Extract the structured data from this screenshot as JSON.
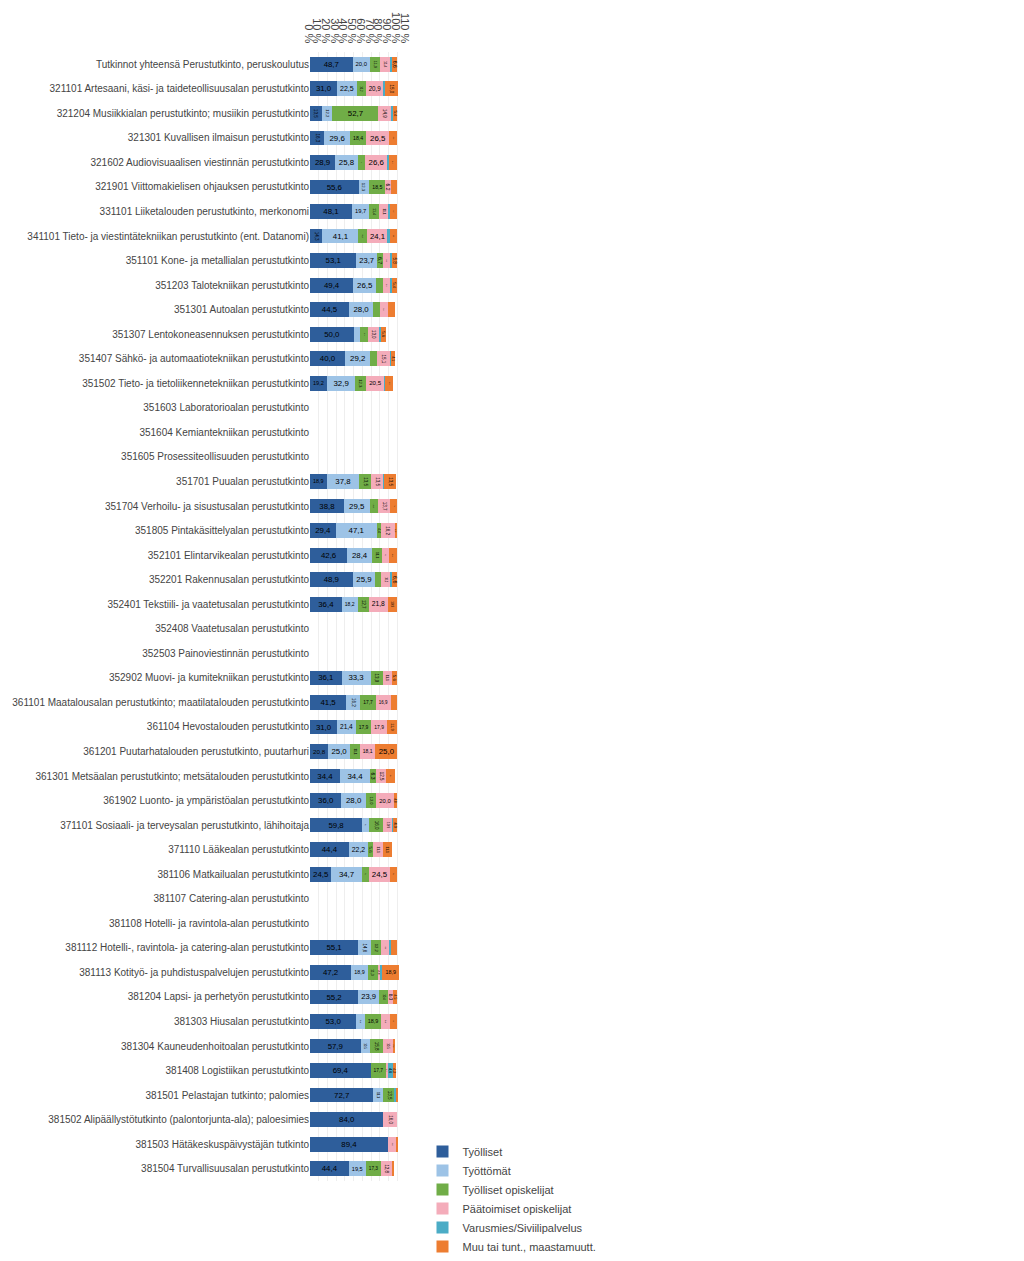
{
  "chart_data": {
    "type": "bar",
    "orientation": "horizontal",
    "stacked": true,
    "data_labels": true,
    "grid": true,
    "legend": "bottom",
    "categories": [
      "Tutkinnot yhteensä Perustutkinto, peruskoulutus",
      "321101 Artesaani, käsi- ja taideteollisuusalan perustutkinto",
      "321204 Musiikkialan perustutkinto; musiikin perustutkinto",
      "321301 Kuvallisen ilmaisun perustutkinto",
      "321602 Audiovisuaalisen viestinnän perustutkinto",
      "321901 Viittomakielisen ohjauksen perustutkinto",
      "331101 Liiketalouden perustutkinto, merkonomi",
      "341101 Tieto- ja viestintätekniikan perustutkinto (ent. Datanomi)",
      "351101 Kone- ja metallialan perustutkinto",
      "351203 Talotekniikan perustutkinto",
      "351301 Autoalan perustutkinto",
      "351307 Lentokoneasennuksen perustutkinto",
      "351407 Sähkö- ja automaatiotekniikan perustutkinto",
      "351502 Tieto- ja tietoliikennetekniikan perustutkinto",
      "351603 Laboratorioalan perustutkinto",
      "351604 Kemiantekniikan perustutkinto",
      "351605 Prosessiteollisuuden perustutkinto",
      "351701 Puualan perustutkinto",
      "351704 Verhoilu- ja sisustusalan perustutkinto",
      "351805 Pintakäsittelyalan perustutkinto",
      "352101 Elintarvikealan perustutkinto",
      "352201 Rakennusalan perustutkinto",
      "352401 Tekstiili- ja vaatetusalan perustutkinto",
      "352408 Vaatetusalan perustutkinto",
      "352503 Painoviestinnän perustutkinto",
      "352902 Muovi- ja kumitekniikan perustutkinto",
      "361101 Maatalousalan perustutkinto; maatilatalouden perustutkinto",
      "361104 Hevostalouden perustutkinto",
      "361201 Puutarhatalouden perustutkinto, puutarhuri",
      "361301 Metsäalan perustutkinto; metsätalouden perustutkinto",
      "361902 Luonto- ja ympäristöalan perustutkinto",
      "371101 Sosiaali- ja terveysalan perustutkinto, lähihoitaja",
      "371110 Lääkealan perustutkinto",
      "381106 Matkailualan perustutkinto",
      "381107 Catering-alan perustutkinto",
      "381108 Hotelli- ja ravintola-alan perustutkinto",
      "381112 Hotelli-, ravintola- ja catering-alan perustutkinto",
      "381113 Kotityö- ja puhdistuspalvelujen perustutkinto",
      "381204 Lapsi- ja perhetyön perustutkinto",
      "381303 Hiusalan perustutkinto",
      "381304 Kauneudenhoitoalan perustutkinto",
      "381408 Logistiikan perustutkinto",
      "381501 Pelastajan tutkinto; palomies",
      "381502 Alipäällystötutkinto (palontorjunta-ala); paloesimies",
      "381503 Hätäkeskuspäivystäjän tutkinto",
      "381504 Turvallisuusalan perustutkinto"
    ],
    "series": [
      {
        "name": "Työlliset",
        "color": "#2E5E9B",
        "values": [
          48.7,
          31.0,
          13.5,
          16.3,
          28.9,
          55.6,
          48.1,
          14.3,
          53.1,
          49.4,
          44.5,
          50.0,
          40.0,
          19.2,
          0.0,
          0.0,
          0.0,
          18.9,
          38.8,
          29.4,
          42.6,
          48.9,
          36.4,
          0.0,
          0.0,
          36.1,
          41.5,
          31.0,
          20.8,
          34.4,
          36.0,
          59.8,
          44.4,
          24.5,
          0.0,
          0.0,
          55.1,
          47.2,
          55.2,
          53.0,
          57.9,
          69.4,
          72.7,
          84.0,
          89.4,
          44.4
        ],
        "value_labels": [
          "48,7",
          "31,0",
          "13,5",
          "16,3",
          "28,9",
          "55,6",
          "48,1",
          "14,3",
          "53,1",
          "49,4",
          "44,5",
          "50,0",
          "40,0",
          "19,2",
          null,
          null,
          null,
          "18,9",
          "38,8",
          "29,4",
          "42,6",
          "48,9",
          "36,4",
          null,
          null,
          "36,1",
          "41,5",
          "31,0",
          "20,8",
          "34,4",
          "36,0",
          "59,8",
          "44,4",
          "24,5",
          null,
          null,
          "55,1",
          "47,2",
          "55,2",
          "53,0",
          "57,9",
          "69,4",
          "72,7",
          "84,0",
          "89,4",
          "44,4"
        ]
      },
      {
        "name": "Työttömät",
        "color": "#9DC3E6",
        "values": [
          20.0,
          22.5,
          12.2,
          29.6,
          25.8,
          12.3,
          19.7,
          41.1,
          23.7,
          26.5,
          28.0,
          7.4,
          29.2,
          32.9,
          0.0,
          0.0,
          0.0,
          37.8,
          29.5,
          47.1,
          28.4,
          25.9,
          18.2,
          0.0,
          0.0,
          33.3,
          16.2,
          21.4,
          25.0,
          34.4,
          28.0,
          8.1,
          22.2,
          34.7,
          0.0,
          0.0,
          14.6,
          18.9,
          23.9,
          9.8,
          10.5,
          0.0,
          11.1,
          0.0,
          0.0,
          19.5
        ],
        "value_labels": [
          "20,0",
          "22,5",
          "12,2",
          "29,6",
          "25,8",
          "12,3",
          "19,7",
          "41,1",
          "23,7",
          "26,5",
          "28,0",
          "7,4",
          "29,2",
          "32,9",
          null,
          null,
          null,
          "37,8",
          "29,5",
          "47,1",
          "28,4",
          "25,9",
          "18,2",
          null,
          null,
          "33,3",
          "16,2",
          "21,4",
          "25,0",
          "34,4",
          "28,0",
          "8,1",
          "22,2",
          "34,7",
          null,
          null,
          "14,6",
          "18,9",
          "23,9",
          "9,8",
          "10,5",
          null,
          "11,1",
          null,
          null,
          "19,5"
        ]
      },
      {
        "name": "Työlliset opiskelijat",
        "color": "#70AD47",
        "values": [
          11.9,
          10.2,
          52.7,
          18.4,
          7.8,
          18.5,
          11.4,
          9.8,
          6.7,
          7.4,
          7.4,
          9.3,
          7.4,
          12.3,
          0.0,
          0.0,
          0.0,
          13.5,
          10.1,
          4.4,
          11.1,
          6.9,
          12.7,
          0.0,
          0.0,
          13.9,
          17.7,
          17.9,
          11.1,
          6.3,
          12.0,
          16.0,
          5.6,
          8.2,
          0.0,
          0.0,
          12.2,
          11.3,
          10.4,
          18.9,
          15.8,
          17.7,
          13.5,
          0.0,
          0.0,
          17.3
        ],
        "value_labels": [
          "11,9",
          "10,2",
          "52,7",
          "18,4",
          "7,8",
          "18,5",
          "11,4",
          "9,8",
          "6,7",
          "7,4",
          "7,4",
          "9,3",
          "7,4",
          "12,3",
          null,
          null,
          null,
          "13,5",
          "10,1",
          "4,4",
          "11,1",
          "6,9",
          "12,7",
          null,
          null,
          "13,9",
          "17,7",
          "17,9",
          "11,1",
          "6,3",
          "12,0",
          "16,0",
          "5,6",
          "8,2",
          null,
          null,
          "12,2",
          "11,3",
          "10,4",
          "18,9",
          "15,8",
          "17,7",
          "13,5",
          null,
          null,
          "17,3"
        ]
      },
      {
        "name": "Päätoimiset opiskelijat",
        "color": "#F4ACBA",
        "values": [
          11.4,
          20.9,
          14.9,
          26.5,
          26.6,
          6.2,
          11.1,
          24.1,
          8.8,
          9.2,
          9.4,
          13.0,
          15.1,
          20.5,
          0.0,
          0.0,
          0.0,
          13.5,
          13.7,
          16.2,
          8.4,
          10.2,
          21.8,
          0.0,
          0.0,
          11.1,
          16.9,
          17.9,
          18.1,
          12.5,
          20.0,
          10.9,
          11.1,
          24.5,
          0.0,
          0.0,
          9.5,
          3.8,
          6.0,
          9.8,
          10.5,
          2.7,
          0.0,
          16.0,
          9.6,
          12.8
        ],
        "value_labels": [
          "11,4",
          "20,9",
          "14,9",
          "26,5",
          "26,6",
          "6,2",
          "11,1",
          "24,1",
          "8,8",
          "9,2",
          "9,4",
          "13,0",
          "15,1",
          "20,5",
          null,
          null,
          null,
          "13,5",
          "13,7",
          "16,2",
          "8,4",
          "10,2",
          "21,8",
          null,
          null,
          "11,1",
          "16,9",
          "17,9",
          "18,1",
          "12,5",
          "20,0",
          "10,9",
          "11,1",
          "24,5",
          null,
          null,
          "9,5",
          "3,8",
          "6,0",
          "9,8",
          "10,5",
          "2,7",
          null,
          "16,0",
          "9,6",
          "12,8"
        ]
      },
      {
        "name": "Varusmies/Siviilipalvelus",
        "color": "#4BACC6",
        "values": [
          1.4,
          1.0,
          1.4,
          0.0,
          1.4,
          0.0,
          1.3,
          1.8,
          1.7,
          1.4,
          0.0,
          1.3,
          1.1,
          1.2,
          0.0,
          0.0,
          0.0,
          1.3,
          0.0,
          0.0,
          0.0,
          1.5,
          0.0,
          0.0,
          0.0,
          0.0,
          0.0,
          0.0,
          0.0,
          0.0,
          0.0,
          0.3,
          0.0,
          0.0,
          0.0,
          0.0,
          1.2,
          1.8,
          0.0,
          0.0,
          0.0,
          4.8,
          2.0,
          0.0,
          0.0,
          0.8
        ],
        "value_labels": [
          null,
          null,
          null,
          null,
          null,
          null,
          null,
          null,
          null,
          null,
          null,
          null,
          null,
          null,
          null,
          null,
          null,
          null,
          null,
          null,
          null,
          null,
          null,
          null,
          null,
          null,
          null,
          null,
          null,
          null,
          null,
          null,
          null,
          null,
          null,
          null,
          null,
          null,
          null,
          null,
          null,
          "4,8",
          null,
          null,
          null,
          null
        ]
      },
      {
        "name": "Muu tai tunt., maastamuutt.",
        "color": "#ED7D31",
        "values": [
          6.6,
          15.0,
          5.4,
          9.2,
          9.4,
          7.4,
          8.4,
          8.9,
          5.8,
          5.4,
          7.7,
          5.6,
          4.1,
          8.9,
          0.0,
          0.0,
          0.0,
          13.5,
          7.9,
          2.9,
          9.5,
          6.6,
          10.9,
          0.0,
          0.0,
          5.6,
          7.7,
          11.9,
          25.0,
          9.4,
          4.0,
          4.9,
          11.1,
          8.2,
          0.0,
          0.0,
          7.4,
          18.9,
          4.5,
          8.3,
          2.6,
          4.3,
          0.7,
          0.0,
          1.0,
          0.8
        ],
        "value_labels": [
          "6,6",
          "15,0",
          "5,4",
          "9,2",
          "9,4",
          "7,4",
          "8,4",
          "8,9",
          "5,8",
          "5,4",
          "7,7",
          "5,6",
          "4,1",
          "8,9",
          null,
          null,
          null,
          "13,5",
          "7,9",
          "2,9",
          "9,5",
          "6,6",
          "10,9",
          null,
          null,
          "5,6",
          "7,7",
          "11,9",
          "25,0",
          "9,4",
          "4,0",
          "4,9",
          "11,1",
          "8,2",
          null,
          null,
          "7,4",
          "18,9",
          "4,5",
          "8,3",
          "2,6",
          "4,3",
          null,
          null,
          null,
          null
        ]
      }
    ],
    "xlim": [
      0,
      110
    ],
    "xticks": [
      {
        "value": 0,
        "label": "0 %"
      },
      {
        "value": 10,
        "label": "10 %"
      },
      {
        "value": 20,
        "label": "20 %"
      },
      {
        "value": 30,
        "label": "30 %"
      },
      {
        "value": 40,
        "label": "40 %"
      },
      {
        "value": 50,
        "label": "50 %"
      },
      {
        "value": 60,
        "label": "60 %"
      },
      {
        "value": 70,
        "label": "70 %"
      },
      {
        "value": 80,
        "label": "80 %"
      },
      {
        "value": 90,
        "label": "90 %"
      },
      {
        "value": 100,
        "label": "100 %"
      },
      {
        "value": 110,
        "label": "110 %"
      }
    ]
  }
}
